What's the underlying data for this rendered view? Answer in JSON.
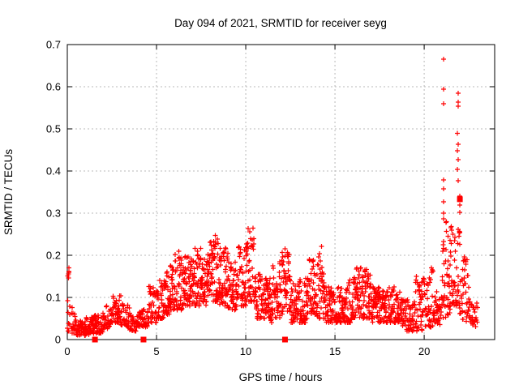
{
  "chart_data": {
    "type": "scatter",
    "title": "Day 094 of 2021, SRMTID for receiver seyg",
    "xlabel": "GPS time / hours",
    "ylabel": "SRMTID / TECUs",
    "xlim": [
      0,
      23.95
    ],
    "ylim": [
      0,
      0.7
    ],
    "x_ticks": [
      0,
      5,
      10,
      15,
      20
    ],
    "x_tick_labels": [
      "0",
      "5",
      "10",
      "15",
      "20"
    ],
    "y_ticks": [
      0,
      0.1,
      0.2,
      0.3,
      0.4,
      0.5,
      0.6,
      0.7
    ],
    "y_tick_labels": [
      "0",
      "0.1",
      "0.2",
      "0.3",
      "0.4",
      "0.5",
      "0.6",
      "0.7"
    ],
    "grid": true,
    "legend": "none",
    "marker": "plus",
    "marker_color": "#ff0000",
    "grid_color": "#b8b8b8",
    "border_color": "#000000",
    "series_name": "SRMTID",
    "outlier_points": [
      [
        21.09,
        0.665
      ],
      [
        21.09,
        0.594
      ],
      [
        21.09,
        0.56
      ],
      [
        21.09,
        0.379
      ],
      [
        21.09,
        0.358
      ],
      [
        21.09,
        0.327
      ],
      [
        21.09,
        0.3
      ],
      [
        21.09,
        0.287
      ],
      [
        21.9,
        0.585
      ],
      [
        21.9,
        0.563
      ],
      [
        21.9,
        0.554
      ],
      [
        21.86,
        0.489
      ],
      [
        21.9,
        0.463
      ],
      [
        21.86,
        0.448
      ],
      [
        21.9,
        0.427
      ],
      [
        21.86,
        0.404
      ],
      [
        21.9,
        0.377
      ],
      [
        22.0,
        0.34
      ],
      [
        22.0,
        0.319
      ],
      [
        22.0,
        0.302
      ],
      [
        21.5,
        0.265
      ],
      [
        21.6,
        0.25
      ],
      [
        21.9,
        0.262
      ],
      [
        21.95,
        0.245
      ],
      [
        21.7,
        0.235
      ],
      [
        22.0,
        0.255
      ],
      [
        21.09,
        0.233
      ],
      [
        21.12,
        0.18
      ],
      [
        21.05,
        0.21
      ]
    ],
    "square_markers": [
      [
        1.55,
        0
      ],
      [
        4.27,
        0
      ],
      [
        12.2,
        0
      ],
      [
        22.0,
        0.333
      ]
    ],
    "density_bins": [
      [
        0.0,
        0.15,
        0.02,
        0.17,
        12
      ],
      [
        0.2,
        0.5,
        0.015,
        0.09,
        16
      ],
      [
        0.5,
        1.0,
        0.01,
        0.05,
        34
      ],
      [
        1.0,
        1.5,
        0.012,
        0.055,
        34
      ],
      [
        1.5,
        2.0,
        0.015,
        0.06,
        32
      ],
      [
        2.0,
        2.5,
        0.025,
        0.08,
        28
      ],
      [
        2.5,
        3.0,
        0.04,
        0.105,
        30
      ],
      [
        3.0,
        3.5,
        0.03,
        0.085,
        28
      ],
      [
        3.5,
        4.0,
        0.02,
        0.06,
        30
      ],
      [
        4.0,
        4.5,
        0.03,
        0.075,
        30
      ],
      [
        4.5,
        5.0,
        0.04,
        0.13,
        32
      ],
      [
        5.0,
        5.5,
        0.05,
        0.145,
        34
      ],
      [
        5.5,
        6.0,
        0.06,
        0.175,
        34
      ],
      [
        6.0,
        6.5,
        0.07,
        0.21,
        36
      ],
      [
        6.5,
        7.0,
        0.08,
        0.2,
        38
      ],
      [
        7.0,
        7.5,
        0.08,
        0.22,
        38
      ],
      [
        7.5,
        8.0,
        0.08,
        0.205,
        38
      ],
      [
        8.0,
        8.5,
        0.09,
        0.26,
        38
      ],
      [
        8.5,
        9.0,
        0.08,
        0.225,
        38
      ],
      [
        9.0,
        9.5,
        0.07,
        0.185,
        38
      ],
      [
        9.5,
        10.0,
        0.08,
        0.225,
        38
      ],
      [
        10.0,
        10.5,
        0.09,
        0.27,
        38
      ],
      [
        10.5,
        11.0,
        0.05,
        0.155,
        34
      ],
      [
        11.0,
        11.5,
        0.04,
        0.145,
        34
      ],
      [
        11.5,
        12.0,
        0.05,
        0.185,
        34
      ],
      [
        12.0,
        12.5,
        0.05,
        0.215,
        34
      ],
      [
        12.5,
        13.0,
        0.04,
        0.135,
        34
      ],
      [
        13.0,
        13.5,
        0.04,
        0.145,
        34
      ],
      [
        13.5,
        14.0,
        0.06,
        0.19,
        34
      ],
      [
        14.0,
        14.5,
        0.05,
        0.23,
        34
      ],
      [
        14.5,
        15.0,
        0.04,
        0.125,
        34
      ],
      [
        15.0,
        15.5,
        0.04,
        0.125,
        34
      ],
      [
        15.5,
        16.0,
        0.04,
        0.145,
        34
      ],
      [
        16.0,
        16.5,
        0.05,
        0.17,
        34
      ],
      [
        16.5,
        17.0,
        0.05,
        0.17,
        34
      ],
      [
        17.0,
        17.5,
        0.04,
        0.125,
        34
      ],
      [
        17.5,
        18.0,
        0.04,
        0.115,
        34
      ],
      [
        18.0,
        18.5,
        0.04,
        0.125,
        34
      ],
      [
        18.5,
        19.0,
        0.03,
        0.115,
        30
      ],
      [
        19.0,
        19.5,
        0.02,
        0.095,
        30
      ],
      [
        19.5,
        20.0,
        0.02,
        0.155,
        30
      ],
      [
        20.0,
        20.5,
        0.03,
        0.17,
        30
      ],
      [
        20.5,
        21.0,
        0.03,
        0.125,
        26
      ],
      [
        21.0,
        21.5,
        0.05,
        0.28,
        32
      ],
      [
        21.5,
        22.0,
        0.08,
        0.28,
        30
      ],
      [
        22.0,
        22.5,
        0.04,
        0.2,
        26
      ],
      [
        22.5,
        23.0,
        0.03,
        0.09,
        24
      ]
    ],
    "seed": 94
  }
}
